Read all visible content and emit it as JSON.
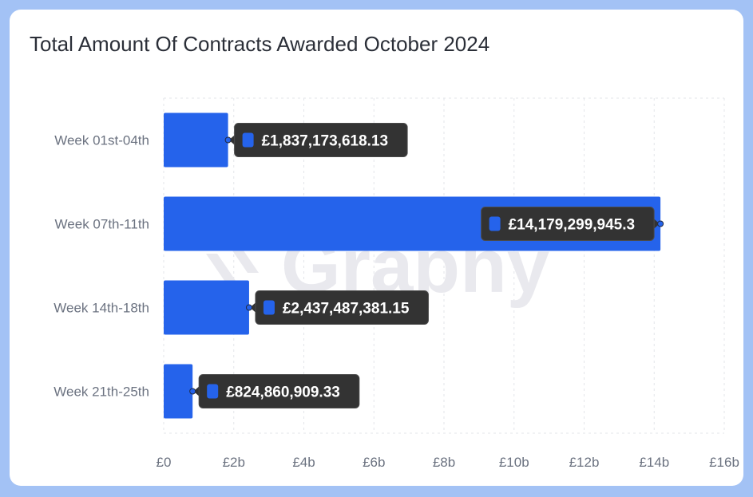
{
  "chart_data": {
    "type": "bar",
    "orientation": "horizontal",
    "title": "Total Amount Of Contracts Awarded October 2024",
    "categories": [
      "Week 01st-04th",
      "Week 07th-11th",
      "Week 14th-18th",
      "Week 21th-25th"
    ],
    "values": [
      1837173618.13,
      14179299945.3,
      2437487381.15,
      824860909.33
    ],
    "value_labels": [
      "£1,837,173,618.13",
      "£14,179,299,945.3",
      "£2,437,487,381.15",
      "£824,860,909.33"
    ],
    "xlim": [
      0,
      16000000000
    ],
    "x_ticks": [
      0,
      2000000000,
      4000000000,
      6000000000,
      8000000000,
      10000000000,
      12000000000,
      14000000000,
      16000000000
    ],
    "x_tick_labels": [
      "£0",
      "£2b",
      "£4b",
      "£6b",
      "£8b",
      "£10b",
      "£12b",
      "£14b",
      "£16b"
    ],
    "grid": true,
    "bar_color": "#2563eb",
    "tooltip_color": "#333333"
  },
  "watermark": "Graphy"
}
